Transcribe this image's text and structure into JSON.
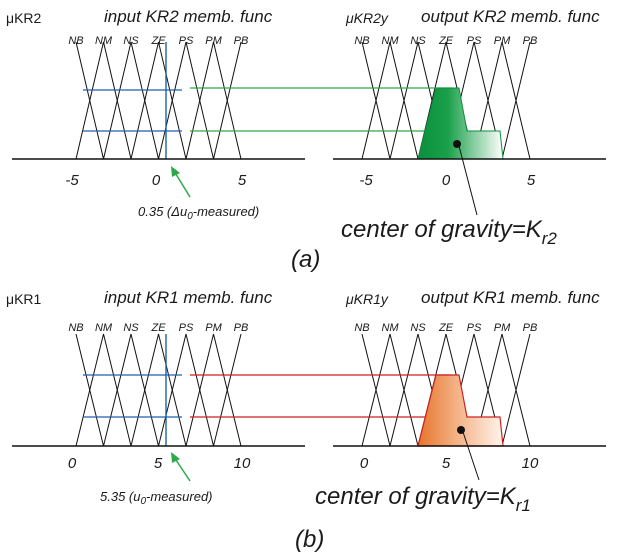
{
  "panel_a": {
    "input_mu_label": "μKR2",
    "input_title": "input KR2 memb. func",
    "output_mu_label": "μKR2y",
    "output_title": "output KR2 memb. func",
    "input_sets": [
      "NB",
      "NM",
      "NS",
      "ZE",
      "PS",
      "PM",
      "PB"
    ],
    "output_sets": [
      "NB",
      "NM",
      "NS",
      "ZE",
      "PS",
      "PM",
      "PB"
    ],
    "input_ticks": [
      "-5",
      "0",
      "5"
    ],
    "output_ticks": [
      "-5",
      "0",
      "5"
    ],
    "measure_annotation": "0.35 (Δu",
    "measure_sub": "0",
    "measure_tail": "-measured)",
    "cog_text": "center of gravity=K",
    "cog_sub": "r2",
    "caption": "(a)",
    "colors": {
      "rule_line": "#2ea84a",
      "fill": "#0a8f3c",
      "marker": "#1e5fb0"
    }
  },
  "panel_b": {
    "input_mu_label": "μKR1",
    "input_title": "input KR1 memb. func",
    "output_mu_label": "μKR1y",
    "output_title": "output KR1 memb. func",
    "input_sets": [
      "NB",
      "NM",
      "NS",
      "ZE",
      "PS",
      "PM",
      "PB"
    ],
    "output_sets": [
      "NB",
      "NM",
      "NS",
      "ZE",
      "PS",
      "PM",
      "PB"
    ],
    "input_ticks": [
      "0",
      "5",
      "10"
    ],
    "output_ticks": [
      "0",
      "5",
      "10"
    ],
    "measure_annotation": "5.35 (u",
    "measure_sub": "0",
    "measure_tail": "-measured)",
    "cog_text": "center of gravity=K",
    "cog_sub": "r1",
    "caption": "(b)",
    "colors": {
      "rule_line": "#cc2222",
      "fill": "#e8742c",
      "marker": "#1e5fb0"
    }
  }
}
